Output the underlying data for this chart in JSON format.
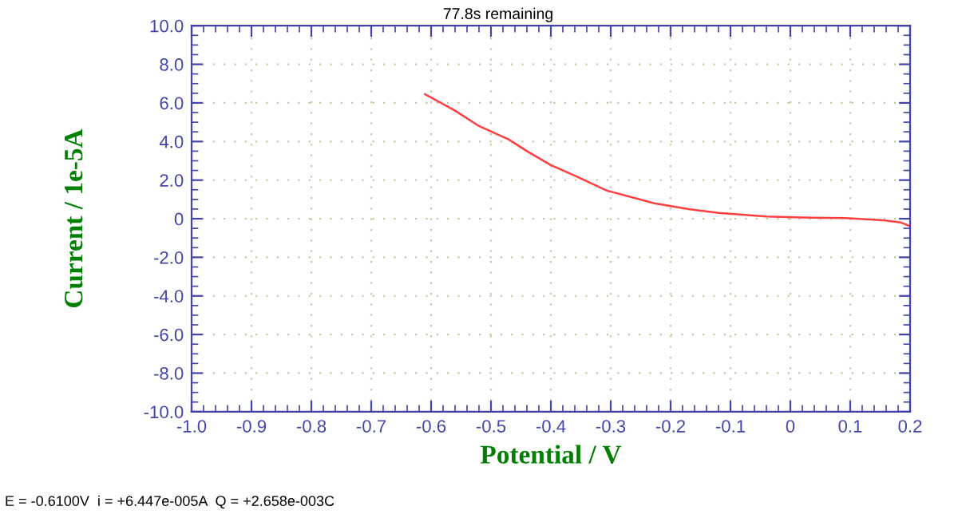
{
  "chart_data": {
    "type": "line",
    "xlabel": "Potential / V",
    "ylabel": "Current / 1e-5A",
    "annotations": [
      "77.8s remaining",
      "E = -0.6100V  i = +6.447e-005A  Q = +2.658e-003C"
    ],
    "series": [
      {
        "color": "#ff4040",
        "x": [
          -0.61,
          -0.56,
          -0.52,
          -0.47,
          -0.44,
          -0.4,
          -0.36,
          -0.307,
          -0.227,
          -0.17,
          -0.12,
          -0.04,
          0.02,
          0.093,
          0.155,
          0.185,
          0.2
        ],
        "values": [
          6.45,
          5.6,
          4.8,
          4.1,
          3.5,
          2.78,
          2.23,
          1.46,
          0.8,
          0.5,
          0.3,
          0.11,
          0.06,
          0.03,
          -0.08,
          -0.2,
          -0.39
        ]
      }
    ],
    "xlim": [
      -1.0,
      0.2
    ],
    "ylim": [
      -10.0,
      10.0
    ],
    "xticks": [
      {
        "value": -1.0,
        "label": "-1.0"
      },
      {
        "value": -0.9,
        "label": "-0.9"
      },
      {
        "value": -0.8,
        "label": "-0.8"
      },
      {
        "value": -0.7,
        "label": "-0.7"
      },
      {
        "value": -0.6,
        "label": "-0.6"
      },
      {
        "value": -0.5,
        "label": "-0.5"
      },
      {
        "value": -0.4,
        "label": "-0.4"
      },
      {
        "value": -0.3,
        "label": "-0.3"
      },
      {
        "value": -0.2,
        "label": "-0.2"
      },
      {
        "value": -0.1,
        "label": "-0.1"
      },
      0,
      0.1,
      0.2
    ],
    "yticks": [
      {
        "value": -10,
        "label": "-10.0"
      },
      {
        "value": -8,
        "label": "-8.0"
      },
      {
        "value": -6,
        "label": "-6.0"
      },
      {
        "value": -4,
        "label": "-4.0"
      },
      {
        "value": -2,
        "label": "-2.0"
      },
      0,
      {
        "value": 2,
        "label": "2.0"
      },
      {
        "value": 4,
        "label": "4.0"
      },
      {
        "value": 6,
        "label": "6.0"
      },
      {
        "value": 8,
        "label": "8.0"
      },
      {
        "value": 10,
        "label": "10.0"
      }
    ],
    "grid": true,
    "line_style": "solid",
    "marker": "none",
    "legend": false
  }
}
